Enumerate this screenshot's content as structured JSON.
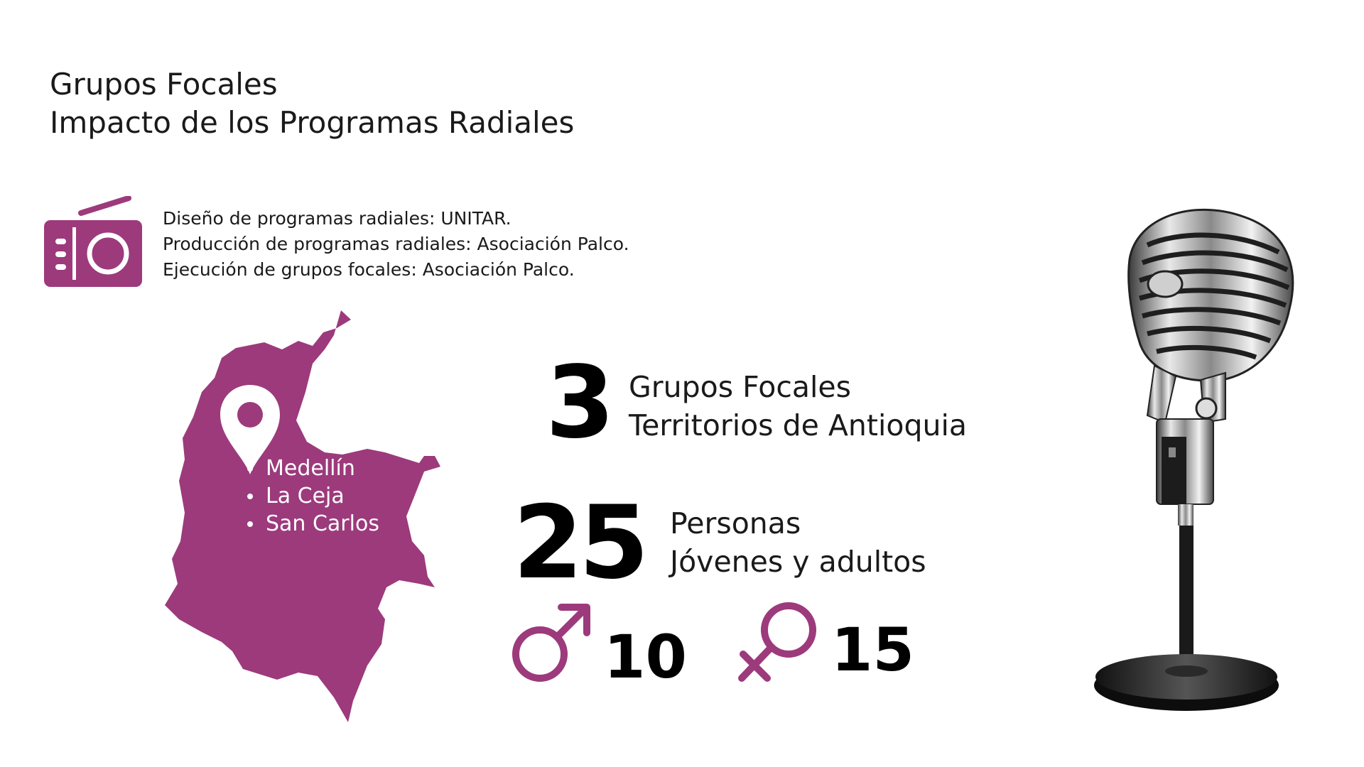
{
  "header": {
    "title_line1": "Grupos Focales",
    "title_line2": "Impacto de los Programas Radiales"
  },
  "credits": {
    "line1": "Diseño de programas radiales: UNITAR.",
    "line2": "Producción de programas radiales: Asociación Palco.",
    "line3": "Ejecución de grupos focales: Asociación Palco."
  },
  "map": {
    "cities": [
      "Medellín",
      "La Ceja",
      "San Carlos"
    ]
  },
  "stats": {
    "groups_count": "3",
    "groups_label_line1": "Grupos Focales",
    "groups_label_line2": "Territorios de Antioquia",
    "people_count": "25",
    "people_label_line1": "Personas",
    "people_label_line2": "Jóvenes y adultos",
    "male_count": "10",
    "female_count": "15"
  },
  "icons": {
    "radio": "radio-icon",
    "location": "location-pin-icon",
    "male": "male-symbol-icon",
    "female": "female-symbol-icon",
    "microphone": "microphone-image"
  },
  "colors": {
    "accent": "#9c3a7c",
    "text": "#111111",
    "background": "#ffffff"
  }
}
